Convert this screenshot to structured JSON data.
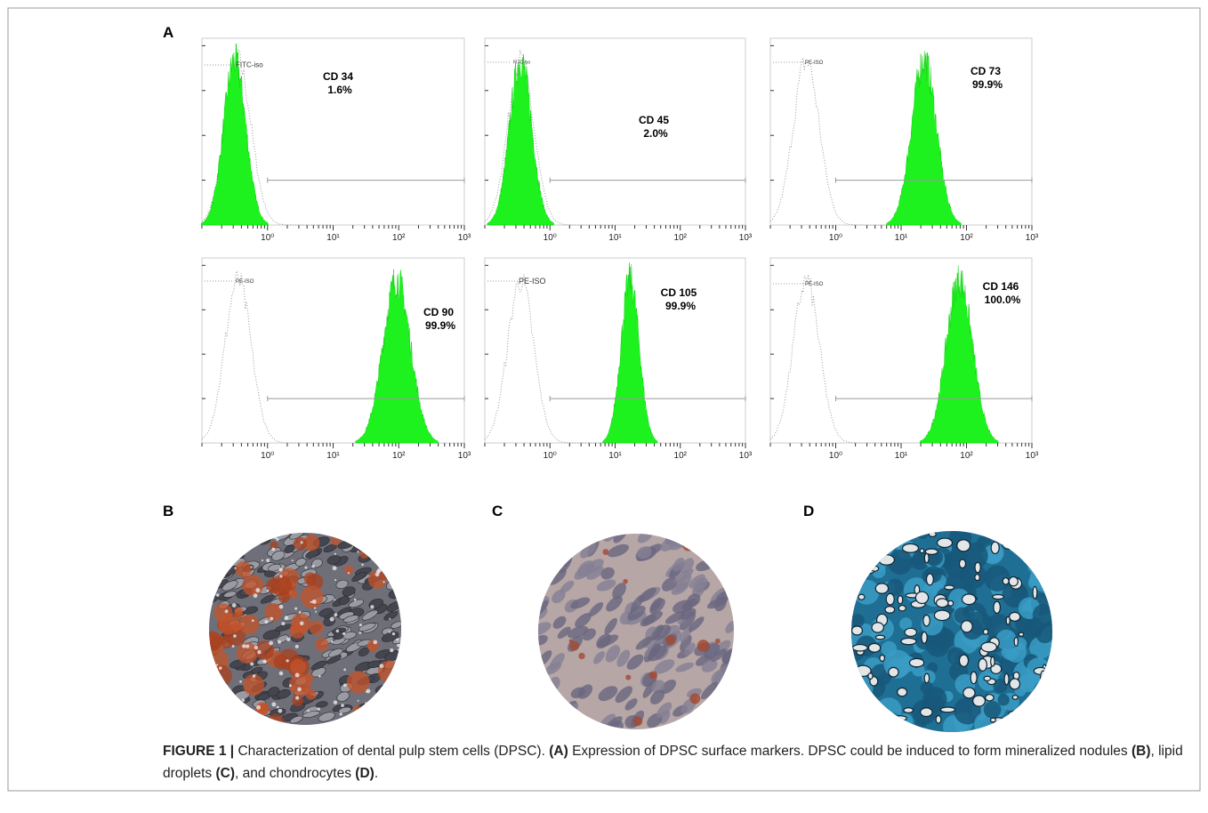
{
  "panel_a": {
    "label": "A",
    "axis_ticks": [
      "10⁰",
      "10¹",
      "10²",
      "10³"
    ],
    "plots": [
      {
        "isotype": "FITC-iso",
        "marker": "CD 34",
        "percent": "1.6%"
      },
      {
        "isotype": "FITC-iso",
        "marker": "CD 45",
        "percent": "2.0%"
      },
      {
        "isotype": "PE-ISO",
        "marker": "CD 73",
        "percent": "99.9%"
      },
      {
        "isotype": "PE-ISO",
        "marker": "CD 90",
        "percent": "99.9%"
      },
      {
        "isotype": "PE-ISO",
        "marker": "CD 105",
        "percent": "99.9%"
      },
      {
        "isotype": "PE-ISO",
        "marker": "CD 146",
        "percent": "100.0%"
      }
    ]
  },
  "panel_b": {
    "label": "B"
  },
  "panel_c": {
    "label": "C"
  },
  "panel_d": {
    "label": "D"
  },
  "caption": {
    "parts": [
      "FIGURE 1 |",
      "Characterization of dental pulp stem cells (DPSC).",
      "(A)",
      "Expression of DPSC surface markers. DPSC could be induced to form mineralized nodules",
      "(B)",
      ", lipid droplets",
      "(C)",
      ", and chondrocytes",
      "(D)",
      "."
    ]
  }
}
